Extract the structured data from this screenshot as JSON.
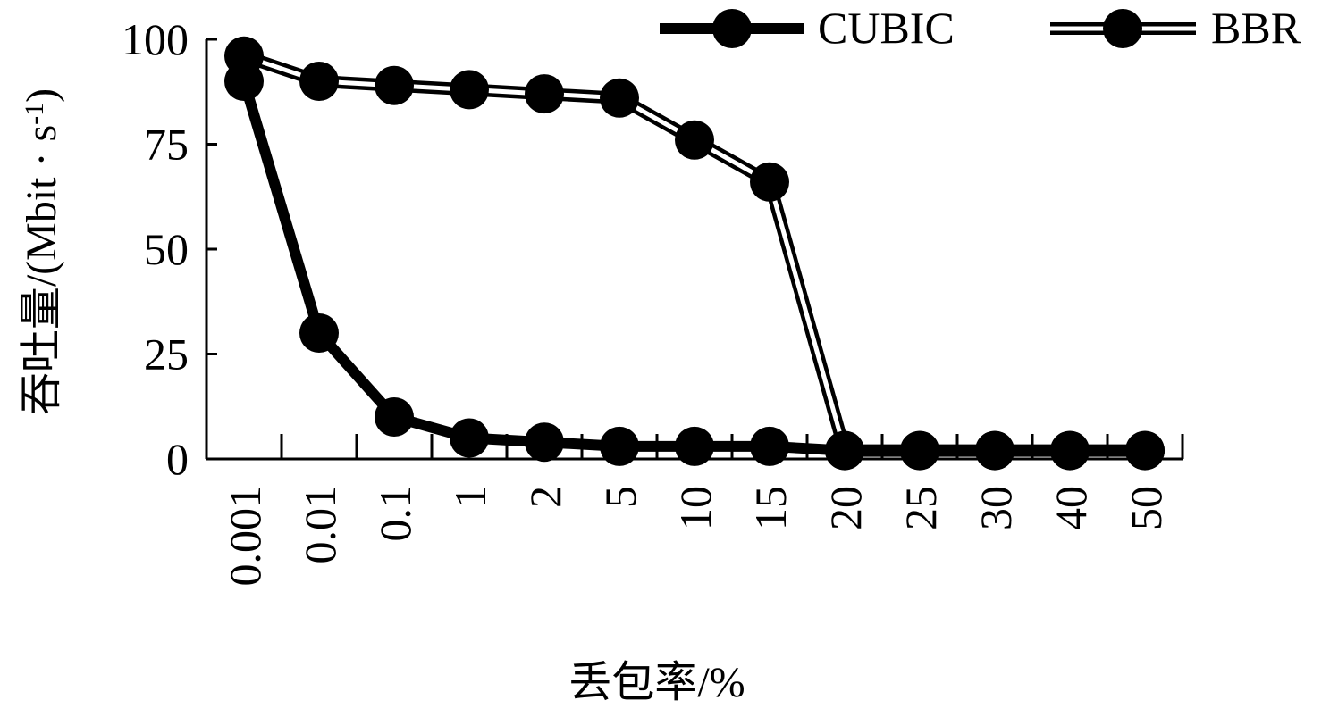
{
  "chart_data": {
    "type": "line",
    "title": "",
    "xlabel": "丢包率/%",
    "ylabel": "吞吐量/(Mbit · s",
    "ylabel_sup": "-1",
    "ylabel_close": ")",
    "categories": [
      "0.001",
      "0.01",
      "0.1",
      "1",
      "2",
      "5",
      "10",
      "15",
      "20",
      "25",
      "30",
      "40",
      "50"
    ],
    "yticks": [
      "0",
      "25",
      "50",
      "75",
      "100"
    ],
    "ylim": [
      0,
      100
    ],
    "grid": false,
    "legend_position": "top-right",
    "series": [
      {
        "name": "CUBIC",
        "style": "solid",
        "values": [
          90,
          30,
          10,
          5,
          4,
          3,
          3,
          3,
          2,
          2,
          2,
          2,
          2
        ]
      },
      {
        "name": "BBR",
        "style": "double",
        "values": [
          96,
          90,
          89,
          88,
          87,
          86,
          76,
          66,
          2,
          2,
          2,
          2,
          2
        ]
      }
    ]
  }
}
